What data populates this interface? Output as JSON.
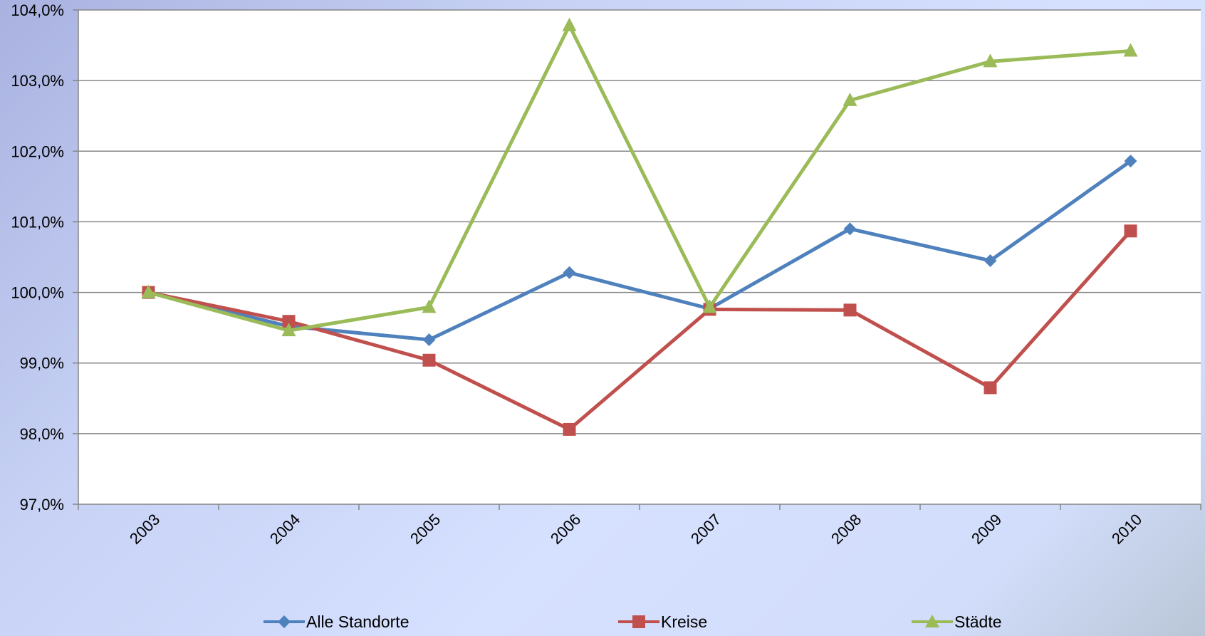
{
  "chart_data": {
    "type": "line",
    "categories": [
      "2003",
      "2004",
      "2005",
      "2006",
      "2007",
      "2008",
      "2009",
      "2010"
    ],
    "y_ticks": [
      "97,0%",
      "98,0%",
      "99,0%",
      "100,0%",
      "101,0%",
      "102,0%",
      "103,0%",
      "104,0%"
    ],
    "ylim": [
      97.0,
      104.0
    ],
    "grid": true,
    "legend_position": "bottom",
    "series": [
      {
        "name": "Alle Standorte",
        "color": "#4f81bd",
        "marker": "diamond",
        "values": [
          100.0,
          99.52,
          99.33,
          100.28,
          99.77,
          100.9,
          100.45,
          101.86
        ]
      },
      {
        "name": "Kreise",
        "color": "#c0504d",
        "marker": "square",
        "values": [
          100.0,
          99.59,
          99.04,
          98.06,
          99.76,
          99.75,
          98.65,
          100.87
        ]
      },
      {
        "name": "Städte",
        "color": "#9bbb59",
        "marker": "triangle",
        "values": [
          100.0,
          99.46,
          99.79,
          103.78,
          99.79,
          102.72,
          103.27,
          103.42
        ]
      }
    ]
  }
}
